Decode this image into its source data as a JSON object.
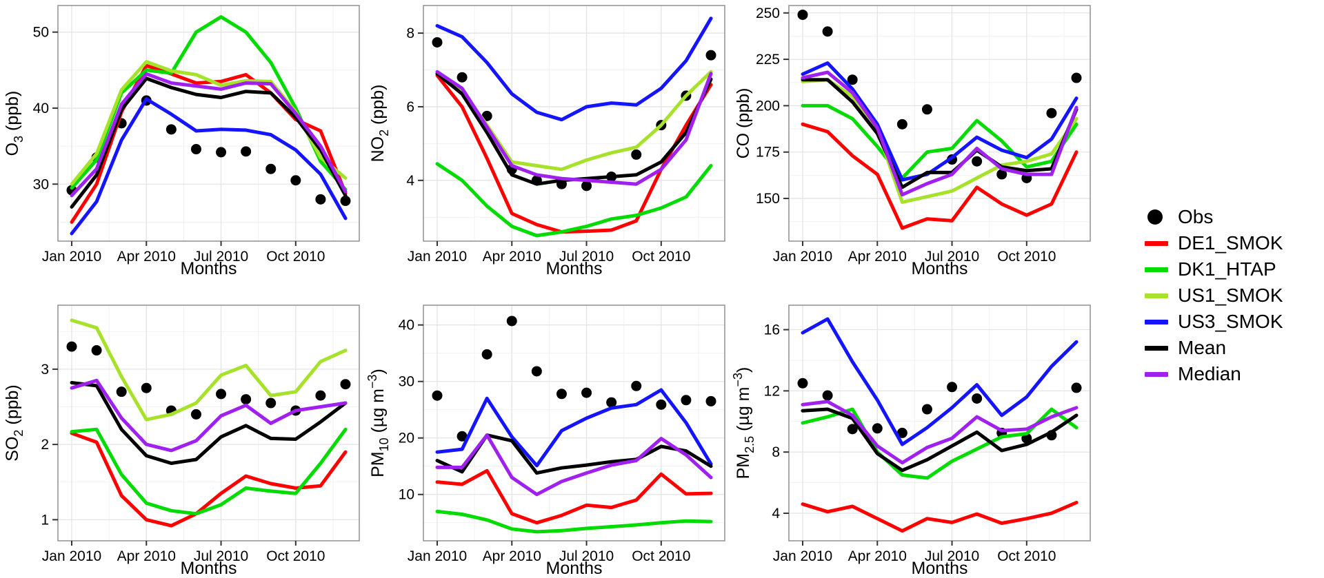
{
  "figure": {
    "background": "#FFFFFF"
  },
  "chart_data": {
    "type": "line",
    "title": "",
    "xlabel": "Months",
    "months": [
      "Jan 2010",
      "Feb 2010",
      "Mar 2010",
      "Apr 2010",
      "May 2010",
      "Jun 2010",
      "Jul 2010",
      "Aug 2010",
      "Sep 2010",
      "Oct 2010",
      "Nov 2010",
      "Dec 2010"
    ],
    "x_tick_labels": [
      "Jan 2010",
      "Apr 2010",
      "Jul 2010",
      "Oct 2010"
    ],
    "x_tick_month_index": [
      0,
      3,
      6,
      9
    ],
    "x_minor_month_index": [
      1.5,
      4.5,
      7.5,
      10.5
    ],
    "grid": true,
    "legend_position": "right",
    "series_meta": [
      {
        "name": "Obs",
        "type": "points",
        "color": "#000000"
      },
      {
        "name": "DE1_SMOK",
        "type": "line",
        "color": "#FF0000"
      },
      {
        "name": "DK1_HTAP",
        "type": "line",
        "color": "#00DC00"
      },
      {
        "name": "US1_SMOK",
        "type": "line",
        "color": "#A7E22A"
      },
      {
        "name": "US3_SMOK",
        "type": "line",
        "color": "#1414FF"
      },
      {
        "name": "Mean",
        "type": "line",
        "color": "#000000"
      },
      {
        "name": "Median",
        "type": "line",
        "color": "#A020F0"
      }
    ],
    "charts": [
      {
        "id": "o3",
        "ylabel_text": "O3 (ppb)",
        "ylabel_parts": [
          {
            "t": "O"
          },
          {
            "t": "3",
            "sub": true
          },
          {
            "t": " (ppb)"
          }
        ],
        "ylim": [
          22.5,
          53.5
        ],
        "yticks": [
          30,
          40,
          50
        ],
        "ytick_labels": [
          "30",
          "40",
          "50"
        ],
        "yminor": [
          25,
          35,
          45
        ],
        "series": {
          "Obs": [
            29.2,
            33.5,
            38.0,
            41.0,
            37.2,
            34.6,
            34.2,
            34.3,
            32.0,
            30.5,
            28.0,
            27.8
          ],
          "DE1_SMOK": [
            25.0,
            30.0,
            39.5,
            45.6,
            44.5,
            43.3,
            43.5,
            44.4,
            42.0,
            38.5,
            37.0,
            28.8
          ],
          "DK1_HTAP": [
            29.5,
            33.2,
            42.0,
            45.0,
            44.6,
            50.0,
            52.0,
            50.0,
            46.0,
            40.0,
            33.0,
            29.3
          ],
          "US1_SMOK": [
            30.0,
            34.0,
            42.4,
            46.1,
            44.9,
            44.4,
            43.0,
            43.6,
            43.5,
            39.5,
            33.5,
            30.8
          ],
          "US3_SMOK": [
            23.5,
            27.7,
            35.8,
            41.2,
            39.2,
            37.0,
            37.2,
            37.1,
            36.5,
            34.5,
            31.3,
            25.5
          ],
          "Mean": [
            27.0,
            31.2,
            39.8,
            43.9,
            42.7,
            41.8,
            41.4,
            42.2,
            42.0,
            38.8,
            34.5,
            28.5
          ],
          "Median": [
            28.5,
            32.0,
            40.5,
            44.5,
            43.3,
            42.9,
            42.5,
            43.3,
            43.2,
            39.3,
            35.0,
            29.0
          ]
        }
      },
      {
        "id": "no2",
        "ylabel_text": "NO2 (ppb)",
        "ylabel_parts": [
          {
            "t": "NO"
          },
          {
            "t": "2",
            "sub": true
          },
          {
            "t": " (ppb)"
          }
        ],
        "ylim": [
          2.35,
          8.75
        ],
        "yticks": [
          4,
          6,
          8
        ],
        "ytick_labels": [
          "4",
          "6",
          "8"
        ],
        "yminor": [
          3,
          5,
          7
        ],
        "series": {
          "Obs": [
            7.75,
            6.8,
            5.75,
            4.3,
            4.0,
            3.9,
            3.85,
            4.1,
            4.7,
            5.5,
            6.3,
            7.4
          ],
          "DE1_SMOK": [
            6.85,
            6.0,
            4.6,
            3.1,
            2.8,
            2.6,
            2.62,
            2.65,
            2.9,
            4.3,
            5.5,
            6.6
          ],
          "DK1_HTAP": [
            4.45,
            4.0,
            3.3,
            2.75,
            2.5,
            2.6,
            2.75,
            2.95,
            3.05,
            3.25,
            3.55,
            4.4
          ],
          "US1_SMOK": [
            6.9,
            6.45,
            5.5,
            4.5,
            4.4,
            4.3,
            4.55,
            4.75,
            4.9,
            5.5,
            6.3,
            6.95
          ],
          "US3_SMOK": [
            8.2,
            7.9,
            7.2,
            6.35,
            5.85,
            5.65,
            6.0,
            6.1,
            6.05,
            6.5,
            7.25,
            8.4
          ],
          "Mean": [
            6.9,
            6.35,
            5.3,
            4.15,
            3.9,
            4.0,
            4.05,
            4.1,
            4.15,
            4.5,
            5.3,
            6.75
          ],
          "Median": [
            6.95,
            6.5,
            5.45,
            4.4,
            4.15,
            4.05,
            4.0,
            3.95,
            3.9,
            4.3,
            5.1,
            6.9
          ]
        }
      },
      {
        "id": "co",
        "ylabel_text": "CO (ppb)",
        "ylabel_parts": [
          {
            "t": "CO (ppb)"
          }
        ],
        "ylim": [
          127,
          254
        ],
        "yticks": [
          150,
          175,
          200,
          225,
          250
        ],
        "ytick_labels": [
          "150",
          "175",
          "200",
          "225",
          "250"
        ],
        "yminor": [
          137.5,
          162.5,
          187.5,
          212.5,
          237.5
        ],
        "series": {
          "Obs": [
            249,
            240,
            214,
            null,
            190,
            198,
            171,
            170,
            163,
            161,
            196,
            215
          ],
          "DE1_SMOK": [
            190,
            186,
            173,
            163,
            134,
            139,
            138,
            156,
            147,
            141,
            147,
            175
          ],
          "DK1_HTAP": [
            200,
            200,
            193,
            178,
            161,
            175,
            177,
            192,
            181,
            167,
            170,
            190
          ],
          "US1_SMOK": [
            213,
            214,
            205,
            187,
            148,
            151,
            154,
            161,
            168,
            170,
            174,
            193
          ],
          "US3_SMOK": [
            217,
            223,
            209,
            190,
            160,
            163,
            172,
            183,
            176,
            172,
            182,
            204
          ],
          "Mean": [
            214,
            214,
            202,
            185,
            156,
            164,
            164,
            176,
            167,
            165,
            166,
            198
          ],
          "Median": [
            215,
            218,
            207,
            188,
            152,
            158,
            163,
            177,
            166,
            163,
            163,
            199
          ]
        }
      },
      {
        "id": "so2",
        "ylabel_text": "SO2 (ppb)",
        "ylabel_parts": [
          {
            "t": "SO"
          },
          {
            "t": "2",
            "sub": true
          },
          {
            "t": " (ppb)"
          }
        ],
        "ylim": [
          0.72,
          3.85
        ],
        "yticks": [
          1,
          2,
          3
        ],
        "ytick_labels": [
          "1",
          "2",
          "3"
        ],
        "yminor": [
          1.5,
          2.5,
          3.5
        ],
        "series": {
          "Obs": [
            3.3,
            3.25,
            2.7,
            2.75,
            2.45,
            2.4,
            2.67,
            2.6,
            2.55,
            2.45,
            2.65,
            2.8
          ],
          "DE1_SMOK": [
            2.15,
            2.03,
            1.32,
            1.0,
            0.92,
            1.08,
            1.35,
            1.58,
            1.48,
            1.42,
            1.45,
            1.9
          ],
          "DK1_HTAP": [
            2.17,
            2.2,
            1.6,
            1.22,
            1.12,
            1.08,
            1.2,
            1.42,
            1.38,
            1.35,
            1.75,
            2.2
          ],
          "US1_SMOK": [
            3.65,
            3.55,
            2.9,
            2.33,
            2.4,
            2.55,
            2.92,
            3.05,
            2.65,
            2.7,
            3.1,
            3.25
          ],
          "US3_SMOK": null,
          "Mean": [
            2.82,
            2.78,
            2.2,
            1.85,
            1.75,
            1.8,
            2.1,
            2.25,
            2.08,
            2.07,
            2.3,
            2.55
          ],
          "Median": [
            2.75,
            2.85,
            2.35,
            2.0,
            1.92,
            2.05,
            2.38,
            2.52,
            2.28,
            2.45,
            2.5,
            2.55
          ]
        }
      },
      {
        "id": "pm10",
        "ylabel_text": "PM10 (ug m-3)",
        "ylabel_parts": [
          {
            "t": "PM"
          },
          {
            "t": "10",
            "sub": true
          },
          {
            "t": " (µg m"
          },
          {
            "t": "−3",
            "sup": true
          },
          {
            "t": ")"
          }
        ],
        "ylim": [
          1.8,
          43.5
        ],
        "yticks": [
          10,
          20,
          30,
          40
        ],
        "ytick_labels": [
          "10",
          "20",
          "30",
          "40"
        ],
        "yminor": [
          5,
          15,
          25,
          35
        ],
        "series": {
          "Obs": [
            27.5,
            20.3,
            34.8,
            40.7,
            31.8,
            27.8,
            28.0,
            26.3,
            29.2,
            25.9,
            26.7,
            26.5
          ],
          "DE1_SMOK": [
            12.2,
            11.8,
            14.2,
            6.6,
            5.0,
            6.3,
            8.1,
            7.7,
            9.0,
            13.6,
            10.1,
            10.2
          ],
          "DK1_HTAP": [
            7.0,
            6.5,
            5.5,
            3.9,
            3.4,
            3.6,
            4.0,
            4.3,
            4.6,
            5.0,
            5.3,
            5.2
          ],
          "US1_SMOK": null,
          "US3_SMOK": [
            17.5,
            18.0,
            27.0,
            20.2,
            15.1,
            21.3,
            23.5,
            25.3,
            25.9,
            28.5,
            22.7,
            15.4
          ],
          "Mean": [
            16.0,
            14.0,
            20.5,
            19.5,
            13.8,
            14.7,
            15.2,
            15.8,
            16.2,
            18.5,
            17.7,
            15.0
          ],
          "Median": [
            14.8,
            14.8,
            20.5,
            13.0,
            10.0,
            12.3,
            13.8,
            15.2,
            16.0,
            19.9,
            17.0,
            13.0
          ]
        }
      },
      {
        "id": "pm25",
        "ylabel_text": "PM2.5 (ug m-3)",
        "ylabel_parts": [
          {
            "t": "PM"
          },
          {
            "t": "2.5",
            "sub": true
          },
          {
            "t": " (µg m"
          },
          {
            "t": "−3",
            "sup": true
          },
          {
            "t": ")"
          }
        ],
        "ylim": [
          2.2,
          17.6
        ],
        "yticks": [
          4,
          8,
          12,
          16
        ],
        "ytick_labels": [
          "4",
          "8",
          "12",
          "16"
        ],
        "yminor": [
          6,
          10,
          14
        ],
        "series": {
          "Obs": [
            12.5,
            11.7,
            9.5,
            9.55,
            9.25,
            10.8,
            12.25,
            11.5,
            9.25,
            8.9,
            9.1,
            12.2
          ],
          "DE1_SMOK": [
            4.6,
            4.1,
            4.45,
            3.65,
            2.85,
            3.65,
            3.4,
            3.95,
            3.35,
            3.65,
            4.0,
            4.7
          ],
          "DK1_HTAP": [
            9.9,
            10.3,
            10.8,
            8.0,
            6.5,
            6.3,
            7.4,
            8.2,
            9.0,
            9.2,
            10.8,
            9.6
          ],
          "US1_SMOK": null,
          "US3_SMOK": [
            15.8,
            16.7,
            13.9,
            11.4,
            8.5,
            9.6,
            10.9,
            12.4,
            10.4,
            11.6,
            13.6,
            15.2
          ],
          "Mean": [
            10.7,
            10.8,
            10.2,
            7.9,
            6.8,
            7.5,
            8.4,
            9.3,
            8.1,
            8.5,
            9.3,
            10.4
          ],
          "Median": [
            11.1,
            11.3,
            10.4,
            8.4,
            7.3,
            8.3,
            8.9,
            10.3,
            9.4,
            9.5,
            10.3,
            10.9
          ]
        }
      }
    ]
  }
}
